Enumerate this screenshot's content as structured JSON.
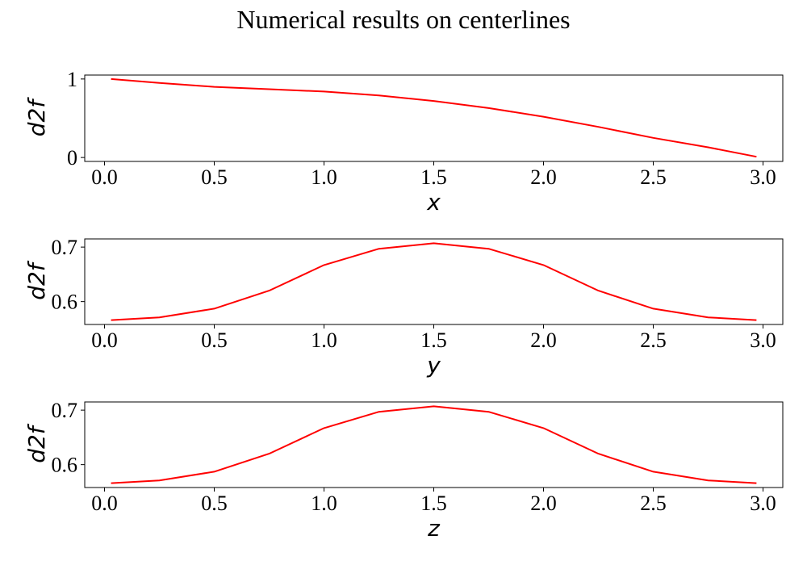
{
  "figure": {
    "title": "Numerical results on centerlines"
  },
  "chart_data": [
    {
      "type": "line",
      "xlabel": "x",
      "ylabel": "d2f",
      "xlim": [
        -0.09,
        3.09
      ],
      "ylim": [
        -0.05,
        1.05
      ],
      "xticks": [
        0.0,
        0.5,
        1.0,
        1.5,
        2.0,
        2.5,
        3.0
      ],
      "xtick_labels": [
        "0.0",
        "0.5",
        "1.0",
        "1.5",
        "2.0",
        "2.5",
        "3.0"
      ],
      "yticks": [
        0,
        1
      ],
      "ytick_labels": [
        "0",
        "1"
      ],
      "grid": false,
      "series": [
        {
          "color": "#ff0000",
          "x": [
            0.03,
            0.25,
            0.5,
            0.75,
            1.0,
            1.25,
            1.5,
            1.75,
            2.0,
            2.25,
            2.5,
            2.75,
            2.97
          ],
          "y": [
            1.0,
            0.95,
            0.9,
            0.87,
            0.84,
            0.79,
            0.72,
            0.63,
            0.52,
            0.39,
            0.25,
            0.13,
            0.01
          ]
        }
      ]
    },
    {
      "type": "line",
      "xlabel": "y",
      "ylabel": "d2f",
      "xlim": [
        -0.09,
        3.09
      ],
      "ylim": [
        0.558,
        0.715
      ],
      "xticks": [
        0.0,
        0.5,
        1.0,
        1.5,
        2.0,
        2.5,
        3.0
      ],
      "xtick_labels": [
        "0.0",
        "0.5",
        "1.0",
        "1.5",
        "2.0",
        "2.5",
        "3.0"
      ],
      "yticks": [
        0.6,
        0.7
      ],
      "ytick_labels": [
        "0.6",
        "0.7"
      ],
      "grid": false,
      "series": [
        {
          "color": "#ff0000",
          "x": [
            0.03,
            0.25,
            0.5,
            0.75,
            1.0,
            1.25,
            1.5,
            1.75,
            2.0,
            2.25,
            2.5,
            2.75,
            2.97
          ],
          "y": [
            0.566,
            0.571,
            0.587,
            0.62,
            0.667,
            0.697,
            0.707,
            0.697,
            0.667,
            0.62,
            0.587,
            0.571,
            0.566
          ]
        }
      ]
    },
    {
      "type": "line",
      "xlabel": "z",
      "ylabel": "d2f",
      "xlim": [
        -0.09,
        3.09
      ],
      "ylim": [
        0.558,
        0.715
      ],
      "xticks": [
        0.0,
        0.5,
        1.0,
        1.5,
        2.0,
        2.5,
        3.0
      ],
      "xtick_labels": [
        "0.0",
        "0.5",
        "1.0",
        "1.5",
        "2.0",
        "2.5",
        "3.0"
      ],
      "yticks": [
        0.6,
        0.7
      ],
      "ytick_labels": [
        "0.6",
        "0.7"
      ],
      "grid": false,
      "series": [
        {
          "color": "#ff0000",
          "x": [
            0.03,
            0.25,
            0.5,
            0.75,
            1.0,
            1.25,
            1.5,
            1.75,
            2.0,
            2.25,
            2.5,
            2.75,
            2.97
          ],
          "y": [
            0.566,
            0.571,
            0.587,
            0.62,
            0.667,
            0.697,
            0.707,
            0.697,
            0.667,
            0.62,
            0.587,
            0.571,
            0.566
          ]
        }
      ]
    }
  ]
}
